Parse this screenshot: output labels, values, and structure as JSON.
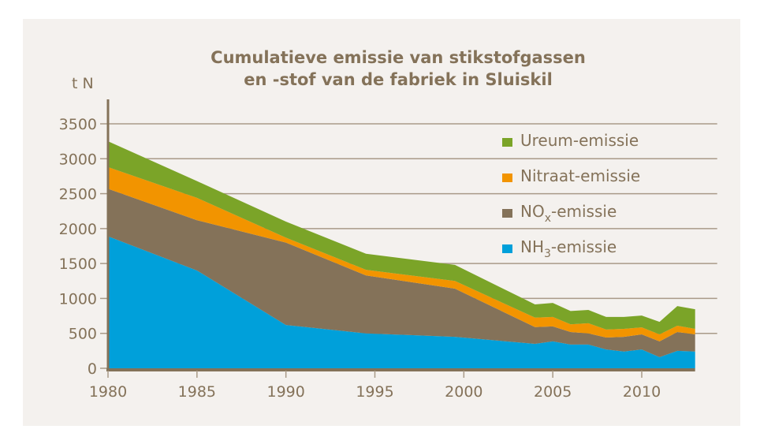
{
  "chart_data": {
    "type": "area",
    "stacked": true,
    "title_lines": [
      "Cumulatieve emissie van stikstofgassen",
      "en -stof van de fabriek in Sluiskil"
    ],
    "ylabel": "t N",
    "xlabel": "",
    "xlim": [
      1980,
      2013
    ],
    "ylim": [
      0,
      3500
    ],
    "xticks": [
      1980,
      1985,
      1990,
      1995,
      2000,
      2005,
      2010
    ],
    "yticks": [
      0,
      500,
      1000,
      1500,
      2000,
      2500,
      3000,
      3500
    ],
    "grid": "horizontal",
    "legend_position": "top-right",
    "x": [
      1980,
      1985,
      1990,
      1994.5,
      1999.5,
      2004,
      2005,
      2006,
      2007,
      2008,
      2009,
      2010,
      2011,
      2012,
      2013
    ],
    "series": [
      {
        "name": "NH3-emissie",
        "label_main": "NH",
        "label_sub": "3",
        "label_suffix": "-emissie",
        "color": "#00A0DA",
        "values": [
          1890,
          1400,
          620,
          500,
          450,
          350,
          385,
          340,
          340,
          270,
          240,
          270,
          160,
          250,
          240
        ]
      },
      {
        "name": "NOx-emissie",
        "label_main": "NO",
        "label_sub": "x",
        "label_suffix": "-emissie",
        "color": "#847259",
        "values": [
          680,
          720,
          1180,
          830,
          690,
          240,
          215,
          180,
          160,
          170,
          210,
          215,
          225,
          270,
          245
        ]
      },
      {
        "name": "Nitraat-emissie",
        "label_main": "Nitraat-emissie",
        "label_sub": "",
        "label_suffix": "",
        "color": "#F29400",
        "values": [
          310,
          320,
          70,
          80,
          110,
          135,
          135,
          110,
          145,
          115,
          115,
          100,
          100,
          90,
          80
        ]
      },
      {
        "name": "Ureum-emissie",
        "label_main": "Ureum-emissie",
        "label_sub": "",
        "label_suffix": "",
        "color": "#7BA428",
        "values": [
          370,
          240,
          230,
          230,
          230,
          190,
          200,
          190,
          190,
          180,
          170,
          170,
          180,
          280,
          280
        ]
      }
    ]
  }
}
